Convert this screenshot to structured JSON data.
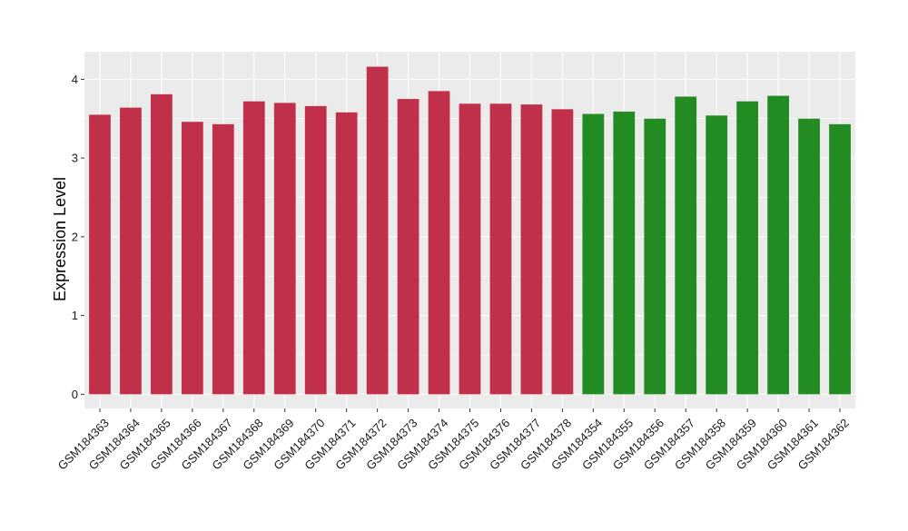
{
  "chart_data": {
    "type": "bar",
    "title": "",
    "xlabel": "",
    "ylabel": "Expression Level",
    "ylim": [
      -0.18,
      4.35
    ],
    "yticks": [
      0,
      1,
      2,
      3,
      4
    ],
    "grid": true,
    "categories": [
      "GSM184363",
      "GSM184364",
      "GSM184365",
      "GSM184366",
      "GSM184367",
      "GSM184368",
      "GSM184369",
      "GSM184370",
      "GSM184371",
      "GSM184372",
      "GSM184373",
      "GSM184374",
      "GSM184375",
      "GSM184376",
      "GSM184377",
      "GSM184378",
      "GSM184354",
      "GSM184355",
      "GSM184356",
      "GSM184357",
      "GSM184358",
      "GSM184359",
      "GSM184360",
      "GSM184361",
      "GSM184362"
    ],
    "values": [
      3.55,
      3.64,
      3.81,
      3.46,
      3.43,
      3.72,
      3.7,
      3.66,
      3.58,
      4.16,
      3.75,
      3.85,
      3.69,
      3.69,
      3.68,
      3.62,
      3.56,
      3.59,
      3.5,
      3.78,
      3.54,
      3.72,
      3.79,
      3.5,
      3.43
    ],
    "groups": [
      "a",
      "a",
      "a",
      "a",
      "a",
      "a",
      "a",
      "a",
      "a",
      "a",
      "a",
      "a",
      "a",
      "a",
      "a",
      "a",
      "b",
      "b",
      "b",
      "b",
      "b",
      "b",
      "b",
      "b",
      "b"
    ],
    "colors": {
      "a": "#c1304a",
      "b": "#228b22"
    },
    "panel_background": "#ebebeb",
    "grid_color": "#ffffff"
  }
}
